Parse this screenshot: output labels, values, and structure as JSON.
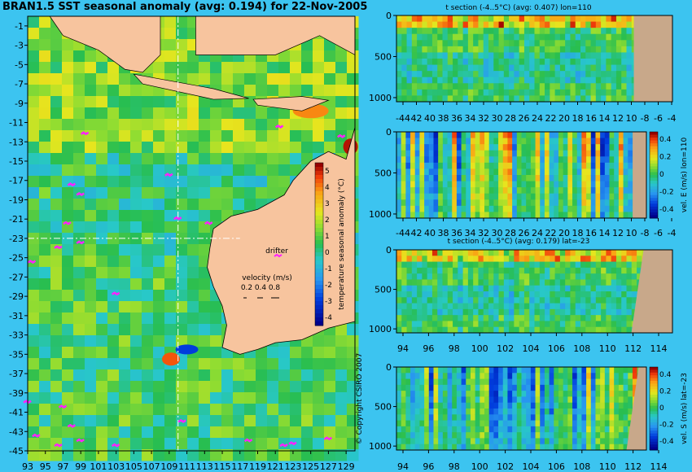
{
  "page_title": "BRAN1.5 SST seasonal anomaly (avg: 0.194) for 22-Nov-2005",
  "copyright": "© Copyright CSIRO 2007",
  "colors": {
    "background": "#3cc4f0",
    "land": "#f7c49e",
    "section_land": "#c8a88a",
    "ocean_mean": "#2fbf5a"
  },
  "chart_data": [
    {
      "type": "heatmap",
      "title": "BRAN1.5 SST seasonal anomaly (avg: 0.194) for 22-Nov-2005",
      "x_ticks": [
        "93",
        "95",
        "97",
        "99",
        "101",
        "103",
        "105",
        "107",
        "109",
        "111",
        "113",
        "115",
        "117",
        "119",
        "121",
        "123",
        "125",
        "127",
        "129"
      ],
      "y_ticks": [
        "-1",
        "-3",
        "-5",
        "-7",
        "-9",
        "-11",
        "-13",
        "-15",
        "-17",
        "-19",
        "-21",
        "-23",
        "-25",
        "-27",
        "-29",
        "-31",
        "-33",
        "-35",
        "-37",
        "-39",
        "-41",
        "-43",
        "-45"
      ],
      "xlim": [
        93,
        130
      ],
      "ylim": [
        -45,
        0
      ],
      "section_lines": {
        "lon": 110,
        "lat": -23
      },
      "colorbar": {
        "label": "temperature seasonal anomaly (°C)",
        "ticks": [
          "5",
          "4",
          "3",
          "2",
          "1",
          "0",
          "-1",
          "-2",
          "-3",
          "-4"
        ],
        "range": [
          -4,
          5
        ]
      },
      "drifter_label": "drifter",
      "velocity_legend": {
        "title": "velocity (m/s)",
        "values": [
          "0.2",
          "0.4",
          "0.8"
        ]
      }
    },
    {
      "type": "heatmap",
      "title": "t section (-4..5°C) (avg: 0.407) lon=110",
      "x_ticks": [
        "-44",
        "42",
        "40",
        "38",
        "36",
        "34",
        "32",
        "30",
        "28",
        "26",
        "24",
        "22",
        "20",
        "18",
        "16",
        "14",
        "12",
        "10",
        "-8",
        "-6",
        "-4"
      ],
      "y_ticks": [
        "0",
        "500",
        "1000"
      ],
      "ylim": [
        1050,
        0
      ]
    },
    {
      "type": "heatmap",
      "title": "",
      "x_ticks": [
        "-44",
        "42",
        "40",
        "38",
        "36",
        "34",
        "32",
        "30",
        "28",
        "26",
        "24",
        "22",
        "20",
        "18",
        "16",
        "14",
        "12",
        "10",
        "-8",
        "-6",
        "-4"
      ],
      "y_ticks": [
        "0",
        "500",
        "1000"
      ],
      "colorbar": {
        "label": "vel. E (m/s) lon=110",
        "ticks": [
          "0.4",
          "0.2",
          "0",
          "-0.2",
          "-0.4"
        ],
        "range": [
          -0.4,
          0.4
        ]
      }
    },
    {
      "type": "heatmap",
      "title": "t section (-4..5°C) (avg: 0.179) lat=-23",
      "x_ticks": [
        "94",
        "96",
        "98",
        "100",
        "102",
        "104",
        "106",
        "108",
        "110",
        "112",
        "114"
      ],
      "y_ticks": [
        "0",
        "500",
        "1000"
      ]
    },
    {
      "type": "heatmap",
      "title": "",
      "x_ticks": [
        "94",
        "96",
        "98",
        "100",
        "102",
        "104",
        "106",
        "108",
        "110",
        "112",
        "114"
      ],
      "y_ticks": [
        "0",
        "500",
        "1000"
      ],
      "colorbar": {
        "label": "vel. S (m/s) lat=-23",
        "ticks": [
          "0.4",
          "0.2",
          "0",
          "-0.2",
          "-0.4"
        ],
        "range": [
          -0.4,
          0.4
        ]
      }
    }
  ]
}
